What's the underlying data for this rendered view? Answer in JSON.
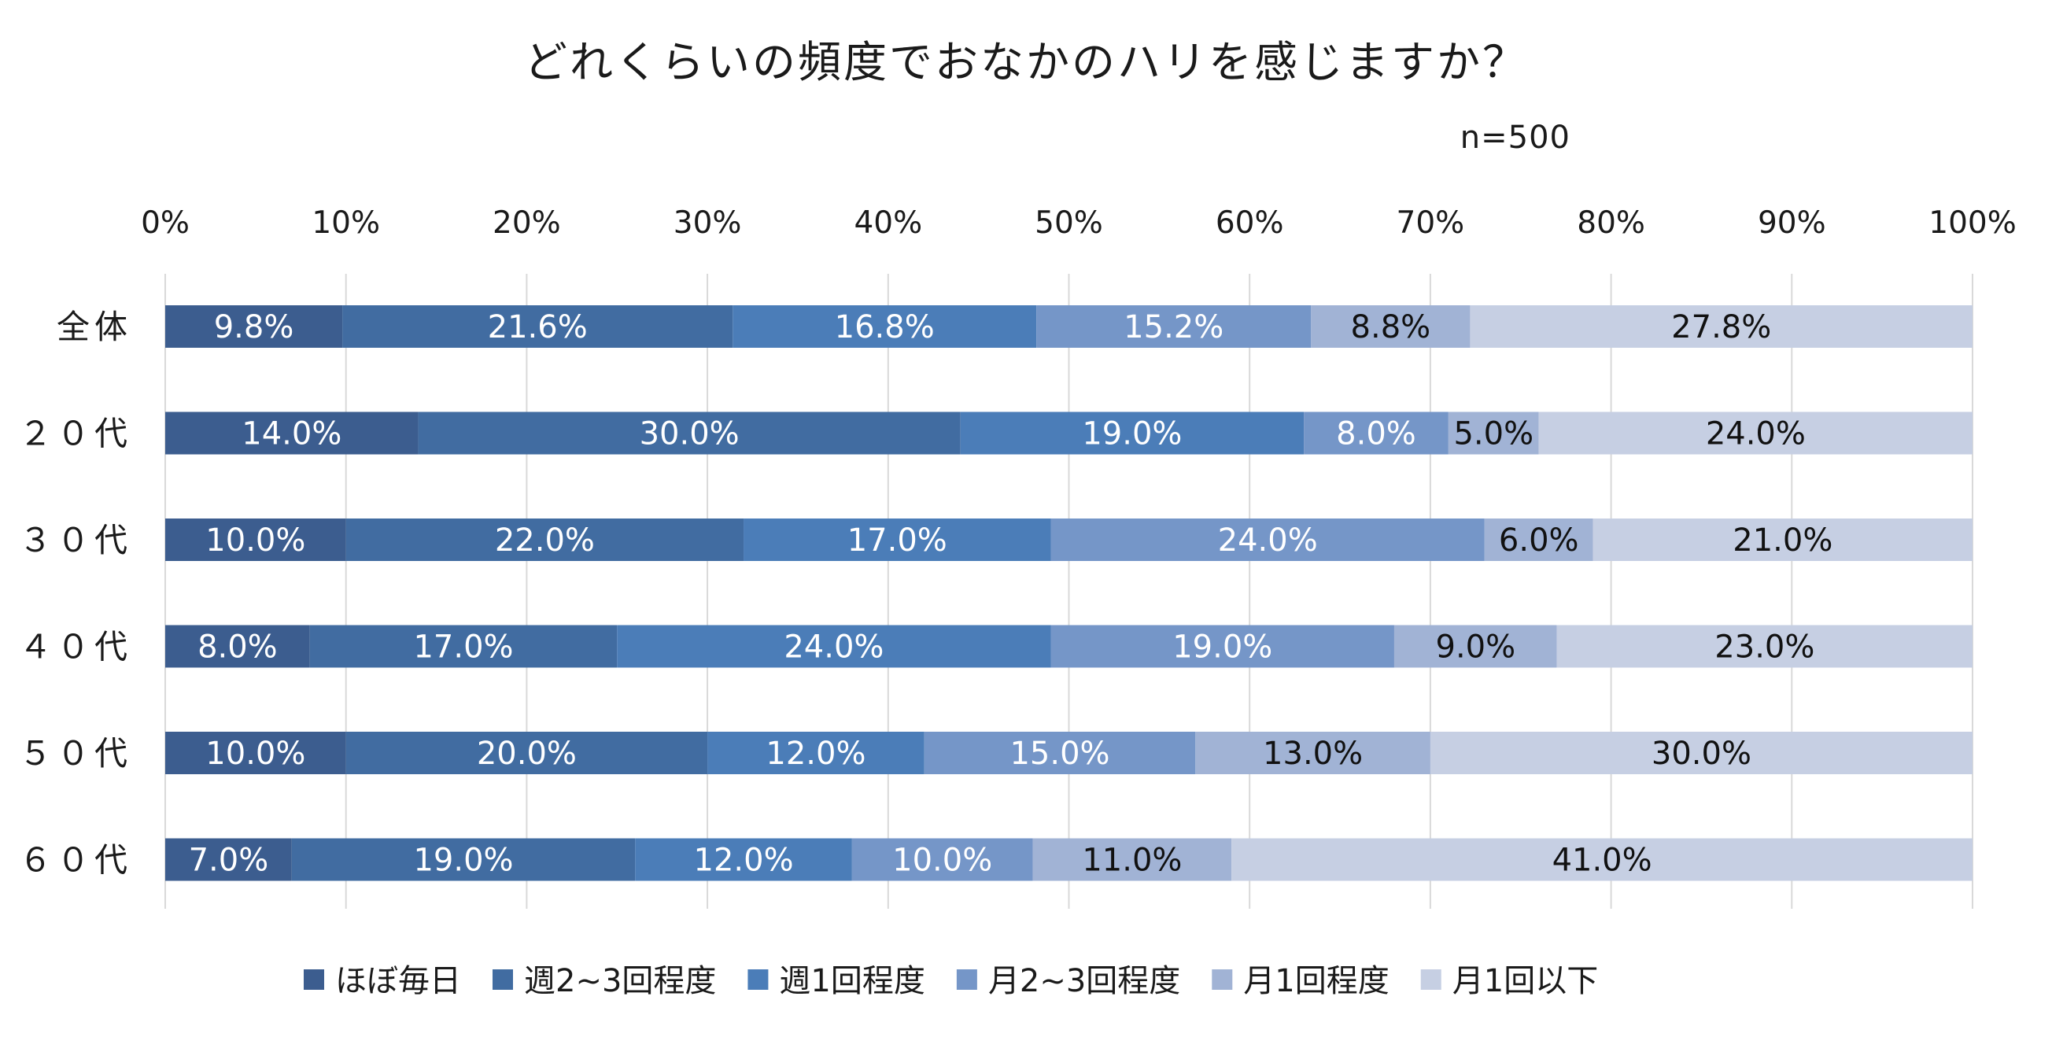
{
  "chart_data": {
    "type": "bar",
    "orientation": "horizontal",
    "stacked": "percent",
    "title": "どれくらいの頻度でおなかのハリを感じますか？",
    "subtitle": "n=500",
    "xlim": [
      0,
      100
    ],
    "x_ticks": [
      "0%",
      "10%",
      "20%",
      "30%",
      "40%",
      "50%",
      "60%",
      "70%",
      "80%",
      "90%",
      "100%"
    ],
    "grid": "vertical",
    "legend_position": "bottom",
    "categories": [
      "全体",
      "２０代",
      "３０代",
      "４０代",
      "５０代",
      "６０代"
    ],
    "series": [
      {
        "name": "ほぼ毎日",
        "color": "#3c5d8f",
        "label_color": "#ffffff",
        "values": [
          9.8,
          14.0,
          10.0,
          8.0,
          10.0,
          7.0
        ],
        "labels": [
          "9.8%",
          "14.0%",
          "10.0%",
          "8.0%",
          "10.0%",
          "7.0%"
        ]
      },
      {
        "name": "週2~3回程度",
        "color": "#416ca1",
        "label_color": "#ffffff",
        "values": [
          21.6,
          30.0,
          22.0,
          17.0,
          20.0,
          19.0
        ],
        "labels": [
          "21.6%",
          "30.0%",
          "22.0%",
          "17.0%",
          "20.0%",
          "19.0%"
        ]
      },
      {
        "name": "週1回程度",
        "color": "#4b7db8",
        "label_color": "#ffffff",
        "values": [
          16.8,
          19.0,
          17.0,
          24.0,
          12.0,
          12.0
        ],
        "labels": [
          "16.8%",
          "19.0%",
          "17.0%",
          "24.0%",
          "12.0%",
          "12.0%"
        ]
      },
      {
        "name": "月2~3回程度",
        "color": "#7596c8",
        "label_color": "#ffffff",
        "values": [
          15.2,
          8.0,
          24.0,
          19.0,
          15.0,
          10.0
        ],
        "labels": [
          "15.2%",
          "8.0%",
          "24.0%",
          "19.0%",
          "15.0%",
          "10.0%"
        ]
      },
      {
        "name": "月1回程度",
        "color": "#a1b3d5",
        "label_color": "#111111",
        "values": [
          8.8,
          5.0,
          6.0,
          9.0,
          13.0,
          11.0
        ],
        "labels": [
          "8.8%",
          "5.0%",
          "6.0%",
          "9.0%",
          "13.0%",
          "11.0%"
        ]
      },
      {
        "name": "月1回以下",
        "color": "#c6cfe3",
        "label_color": "#111111",
        "values": [
          27.8,
          24.0,
          21.0,
          23.0,
          30.0,
          41.0
        ],
        "labels": [
          "27.8%",
          "24.0%",
          "21.0%",
          "23.0%",
          "30.0%",
          "41.0%"
        ]
      }
    ]
  }
}
